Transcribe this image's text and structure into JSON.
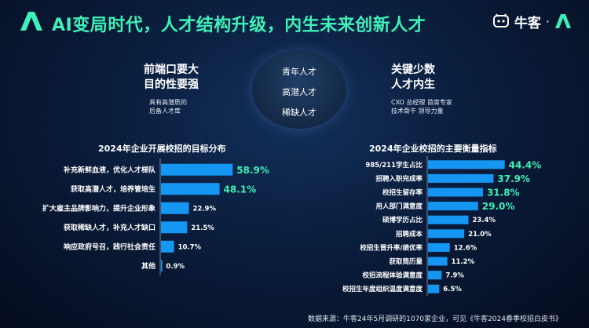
{
  "header": {
    "title": "AI变局时代，人才结构升级，内生未来创新人才",
    "brand_name": "牛客",
    "brand_separator": "·"
  },
  "left_block": {
    "heading_line1": "前端口要大",
    "heading_line2": "目的性要强",
    "sub_line1": "具有高潜质的",
    "sub_line2": "后备人才库"
  },
  "center_block": {
    "items": [
      "青年人才",
      "高潜人才",
      "稀缺人才"
    ]
  },
  "right_block": {
    "heading_line1": "关键少数",
    "heading_line2": "人才内生",
    "sub_line1": "CXO 总经理 首席专家",
    "sub_line2": "技术骨干 领导力量"
  },
  "colors": {
    "accent": "#3ff0b8",
    "bar": "#1596f2",
    "background": "#0a1d3c"
  },
  "chart_data": [
    {
      "type": "bar",
      "orientation": "horizontal",
      "title": "2024年企业开展校招的目标分布",
      "categories": [
        "补充新鲜血液，优化人才梯队",
        "获取高潜人才，培养管培生",
        "扩大雇主品牌影响力，提升企业形象",
        "获取稀缺人才，补充人才缺口",
        "响应政府号召，践行社会责任",
        "其他"
      ],
      "values": [
        58.9,
        48.1,
        22.9,
        21.5,
        10.7,
        0.9
      ],
      "value_labels": [
        "58.9%",
        "48.1%",
        "22.9%",
        "21.5%",
        "10.7%",
        "0.9%"
      ],
      "highlight_top": 2,
      "xlim": [
        0,
        100
      ]
    },
    {
      "type": "bar",
      "orientation": "horizontal",
      "title": "2024年企业校招的主要衡量指标",
      "categories": [
        "985/211学生占比",
        "招聘入职完成率",
        "校招生留存率",
        "用人部门满意度",
        "硕博学历占比",
        "招聘成本",
        "校招生晋升率/绩优率",
        "获取简历量",
        "校招流程体验满意度",
        "校招生年度组织温度满意度"
      ],
      "values": [
        44.4,
        37.9,
        31.8,
        29.0,
        23.4,
        21.0,
        12.6,
        11.2,
        7.9,
        6.5
      ],
      "value_labels": [
        "44.4%",
        "37.9%",
        "31.8%",
        "29.0%",
        "23.4%",
        "21.0%",
        "12.6%",
        "11.2%",
        "7.9%",
        "6.5%"
      ],
      "highlight_top": 4,
      "xlim": [
        0,
        100
      ]
    }
  ],
  "footer": {
    "source": "数据来源：牛客24年5月调研的1070家企业，可见《牛客2024春季校招白皮书》"
  }
}
